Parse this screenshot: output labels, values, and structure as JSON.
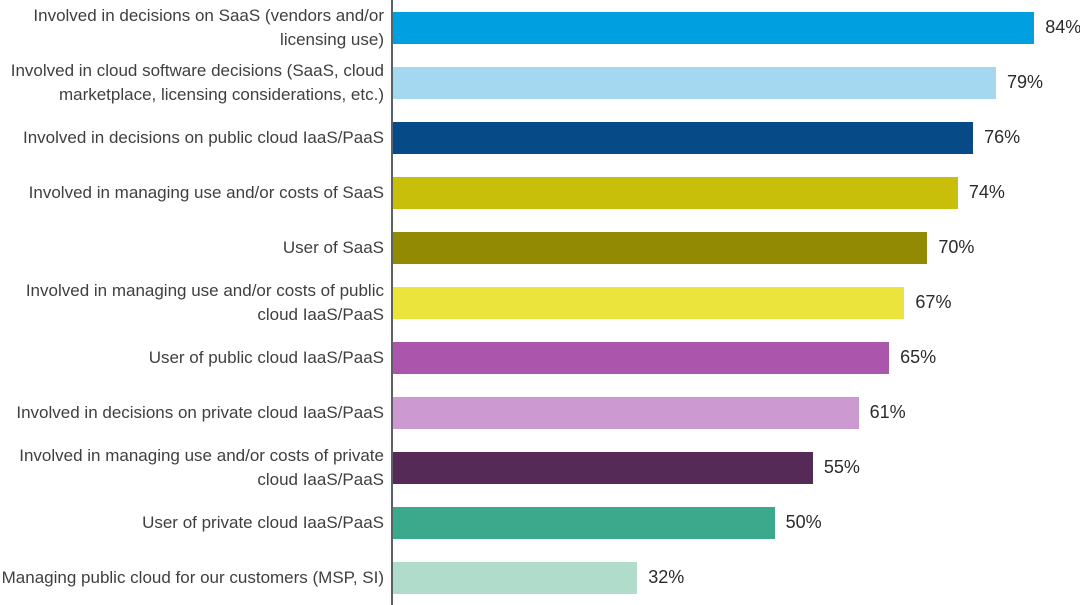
{
  "chart_data": {
    "type": "bar",
    "orientation": "horizontal",
    "unit": "%",
    "title": "",
    "xlabel": "",
    "ylabel": "",
    "xlim": [
      0,
      90
    ],
    "grid": false,
    "legend": "none",
    "axis_line_color": "#5c6166",
    "label_text_color": "#3f3f3f",
    "value_text_color": "#2b2b2b",
    "categories": [
      "Involved in decisions on SaaS (vendors and/or licensing use)",
      "Involved in cloud software decisions (SaaS, cloud marketplace, licensing considerations, etc.)",
      "Involved in decisions on public cloud IaaS/PaaS",
      "Involved in managing use and/or costs of SaaS",
      "User of SaaS",
      "Involved in managing use and/or costs of public cloud IaaS/PaaS",
      "User of public cloud IaaS/PaaS",
      "Involved in decisions on private cloud IaaS/PaaS",
      "Involved in managing use and/or costs of private cloud IaaS/PaaS",
      "User of private cloud IaaS/PaaS",
      "Managing public cloud for our customers (MSP, SI)"
    ],
    "values": [
      84,
      79,
      76,
      74,
      70,
      67,
      65,
      61,
      55,
      50,
      32
    ],
    "value_labels": [
      "84%",
      "79%",
      "76%",
      "74%",
      "70%",
      "67%",
      "65%",
      "61%",
      "55%",
      "50%",
      "32%"
    ],
    "bar_colors": [
      "#009fdf",
      "#a3d8f0",
      "#064a87",
      "#c8bf0b",
      "#938a04",
      "#ebe43c",
      "#ac55ad",
      "#cc99d1",
      "#552a57",
      "#3baa8c",
      "#b0dccc"
    ]
  }
}
